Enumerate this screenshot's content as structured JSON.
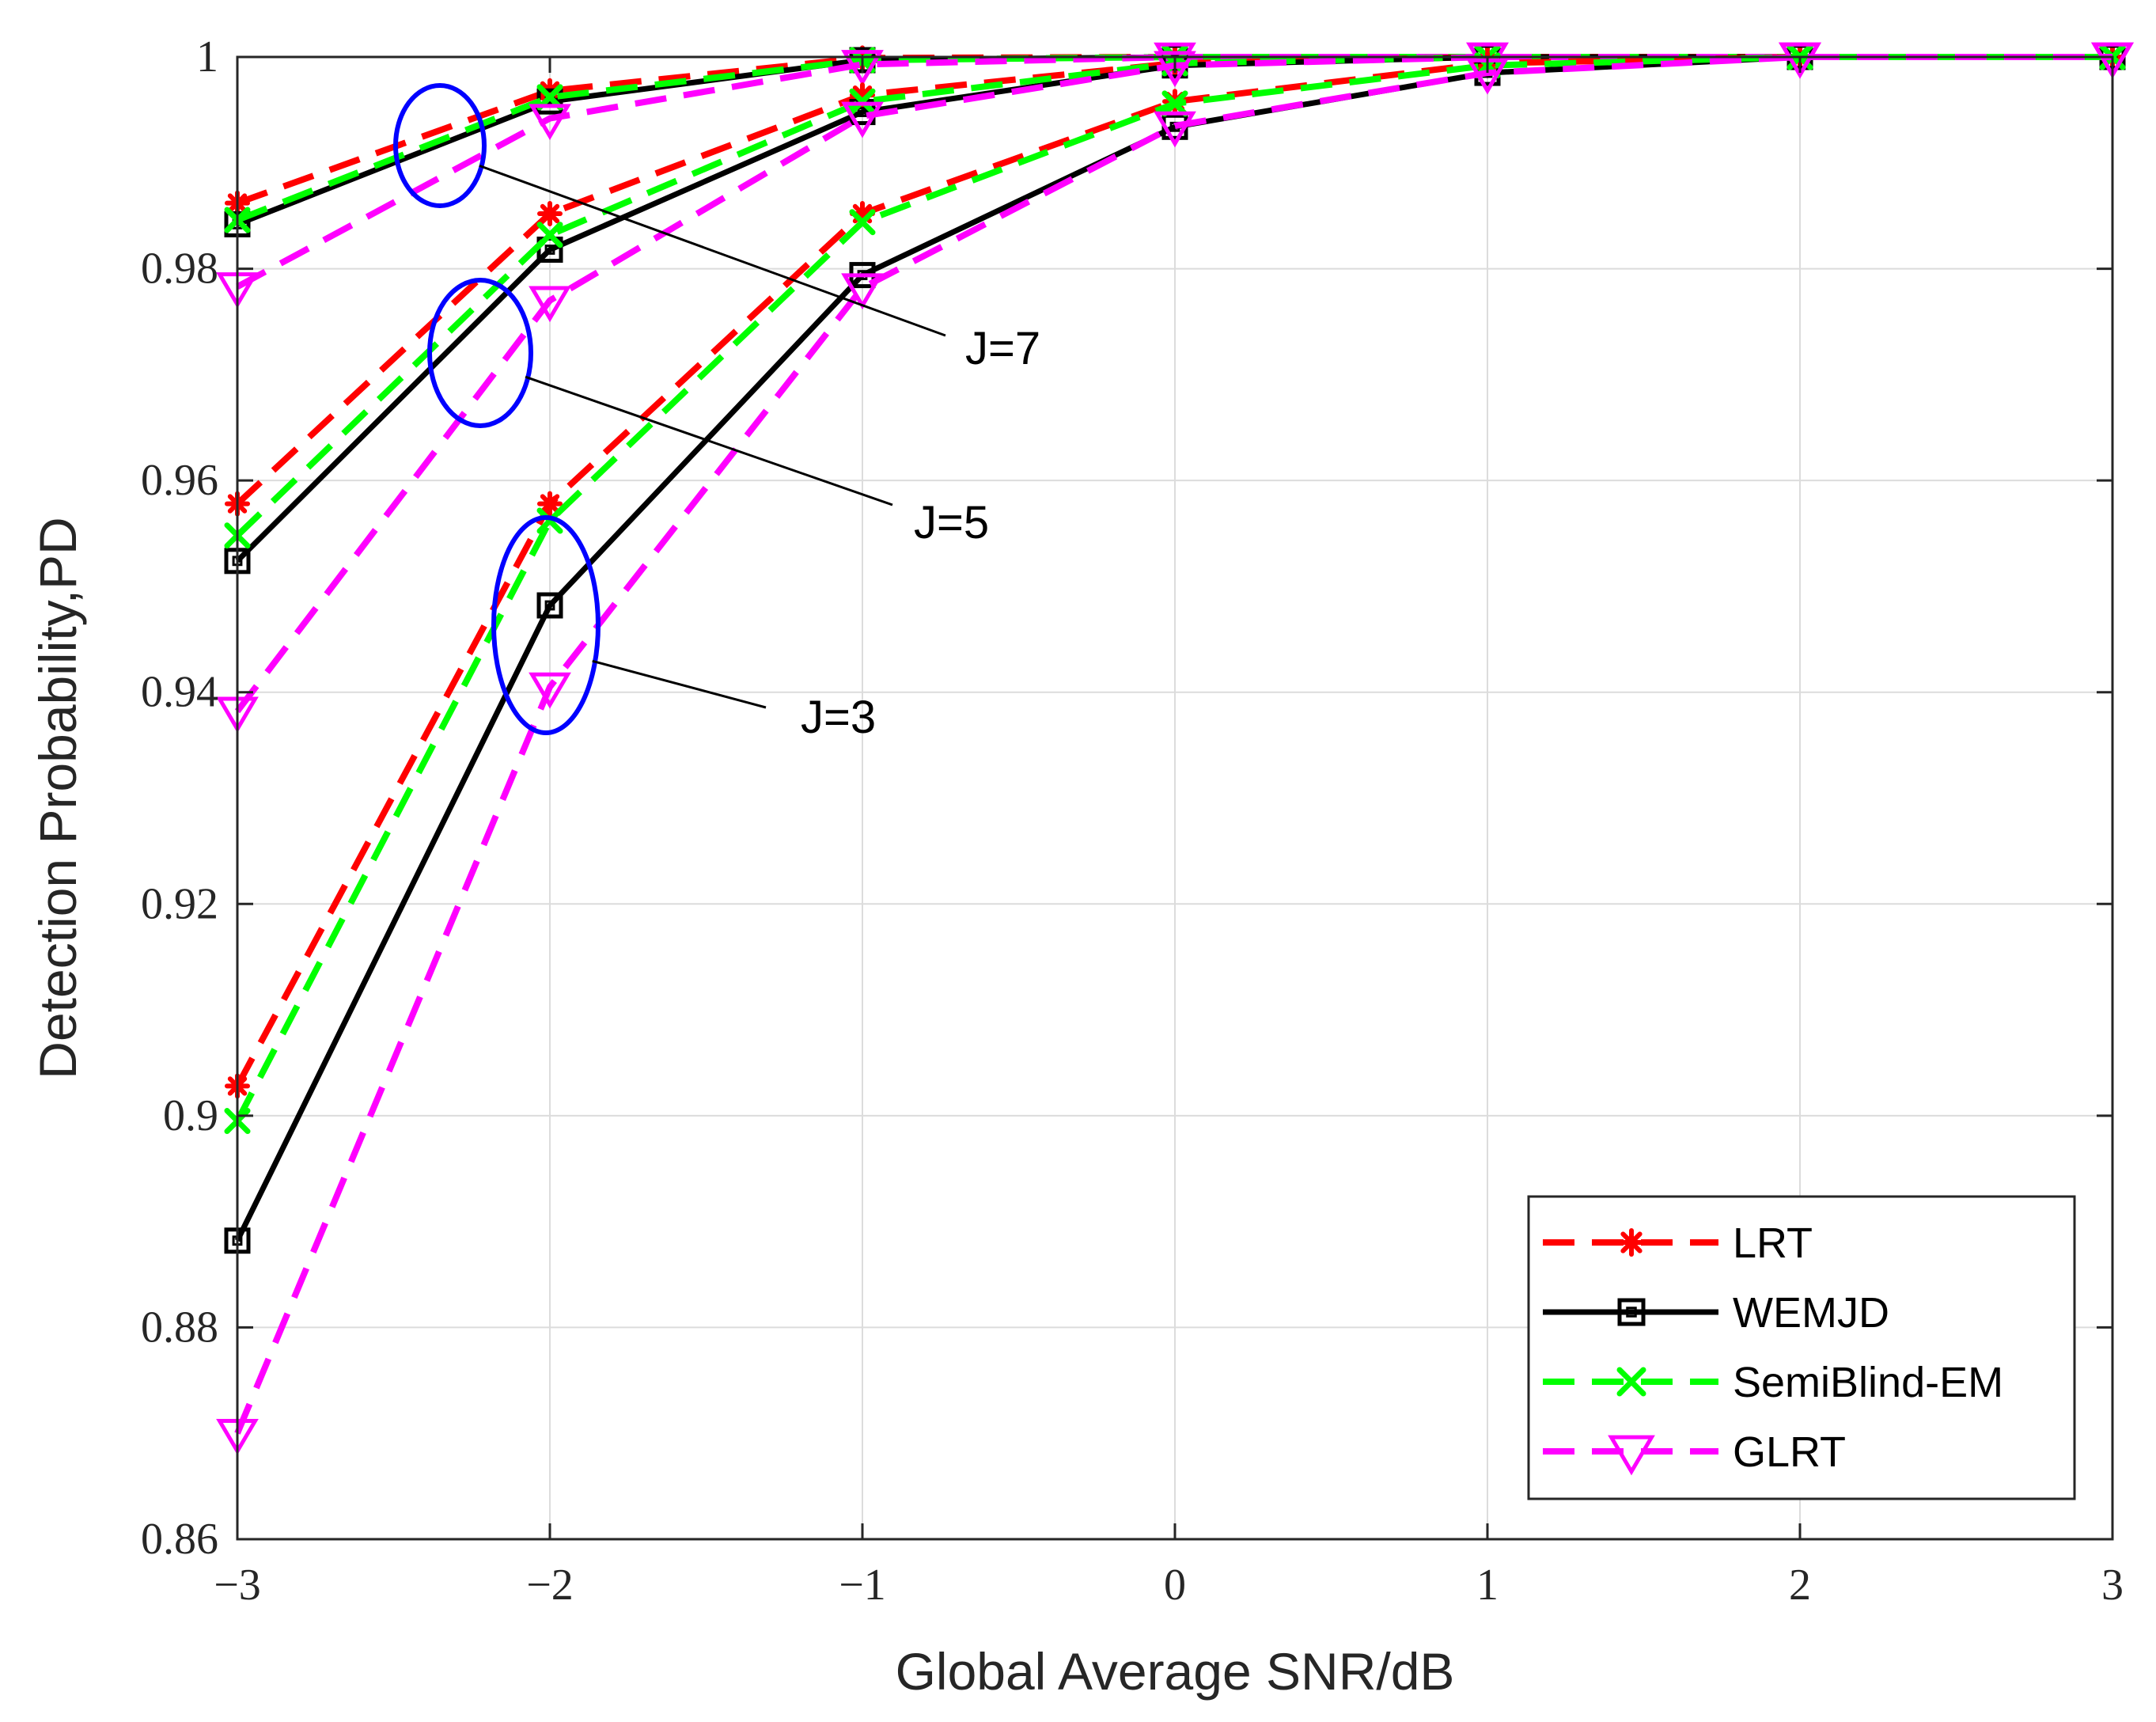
{
  "chart_data": {
    "type": "line",
    "title": "",
    "xlabel": "Global Average SNR/dB",
    "ylabel": "Detection Probability,PD",
    "x": [
      -3,
      -2,
      -1,
      0,
      1,
      2,
      3
    ],
    "xlim": [
      -3,
      3
    ],
    "ylim": [
      0.86,
      1
    ],
    "xticks": [
      -3,
      -2,
      -1,
      0,
      1,
      2,
      3
    ],
    "xtick_labels": [
      "−3",
      "−2",
      "−1",
      "0",
      "1",
      "2",
      "3"
    ],
    "yticks": [
      0.86,
      0.88,
      0.9,
      0.92,
      0.94,
      0.96,
      0.98,
      1
    ],
    "ytick_labels": [
      "0.86",
      "0.88",
      "0.9",
      "0.92",
      "0.94",
      "0.96",
      "0.98",
      "1"
    ],
    "grid": true,
    "legend_position": "bottom-right",
    "series": [
      {
        "name": "LRT",
        "group": "J=7",
        "color": "#ff0000",
        "dash": "dashed",
        "marker": "asterisk",
        "values": [
          0.9862,
          0.9968,
          0.9999,
          1.0,
          1.0,
          1.0,
          1.0
        ]
      },
      {
        "name": "WEMJD",
        "group": "J=7",
        "color": "#000000",
        "dash": "solid",
        "marker": "square",
        "values": [
          0.9842,
          0.9958,
          0.9997,
          1.0,
          1.0,
          1.0,
          1.0
        ]
      },
      {
        "name": "SemiBlind-EM",
        "group": "J=7",
        "color": "#00ff00",
        "dash": "dashed",
        "marker": "x",
        "values": [
          0.9846,
          0.9962,
          0.9997,
          1.0,
          1.0,
          1.0,
          1.0
        ]
      },
      {
        "name": "GLRT",
        "group": "J=7",
        "color": "#ff00ff",
        "dash": "dashed",
        "marker": "triangle-down",
        "values": [
          0.9783,
          0.9942,
          0.9993,
          1.0,
          1.0,
          1.0,
          1.0
        ]
      },
      {
        "name": "LRT",
        "group": "J=5",
        "color": "#ff0000",
        "dash": "dashed",
        "marker": "asterisk",
        "values": [
          0.9578,
          0.9852,
          0.9964,
          0.9994,
          1.0,
          1.0,
          1.0
        ]
      },
      {
        "name": "WEMJD",
        "group": "J=5",
        "color": "#000000",
        "dash": "solid",
        "marker": "square",
        "values": [
          0.9524,
          0.9818,
          0.9948,
          0.9992,
          1.0,
          1.0,
          1.0
        ]
      },
      {
        "name": "SemiBlind-EM",
        "group": "J=5",
        "color": "#00ff00",
        "dash": "dashed",
        "marker": "x",
        "values": [
          0.9548,
          0.9832,
          0.9958,
          0.9994,
          1.0,
          1.0,
          1.0
        ]
      },
      {
        "name": "GLRT",
        "group": "J=5",
        "color": "#ff00ff",
        "dash": "dashed",
        "marker": "triangle-down",
        "values": [
          0.9382,
          0.977,
          0.9944,
          0.9992,
          1.0,
          1.0,
          1.0
        ]
      },
      {
        "name": "LRT",
        "group": "J=3",
        "color": "#ff0000",
        "dash": "dashed",
        "marker": "asterisk",
        "values": [
          0.9028,
          0.9578,
          0.9852,
          0.9958,
          0.9994,
          1.0,
          1.0
        ]
      },
      {
        "name": "WEMJD",
        "group": "J=3",
        "color": "#000000",
        "dash": "solid",
        "marker": "square",
        "values": [
          0.8882,
          0.9482,
          0.9794,
          0.9934,
          0.9985,
          1.0,
          1.0
        ]
      },
      {
        "name": "SemiBlind-EM",
        "group": "J=3",
        "color": "#00ff00",
        "dash": "dashed",
        "marker": "x",
        "values": [
          0.8995,
          0.9562,
          0.9844,
          0.9956,
          0.9992,
          1.0,
          1.0
        ]
      },
      {
        "name": "GLRT",
        "group": "J=3",
        "color": "#ff00ff",
        "dash": "dashed",
        "marker": "triangle-down",
        "values": [
          0.87,
          0.9405,
          0.9782,
          0.9935,
          0.9985,
          1.0,
          1.0
        ]
      }
    ],
    "legend": [
      {
        "label": "LRT",
        "color": "#ff0000",
        "dash": "dashed",
        "marker": "asterisk"
      },
      {
        "label": "WEMJD",
        "color": "#000000",
        "dash": "solid",
        "marker": "square"
      },
      {
        "label": "SemiBlind-EM",
        "color": "#00ff00",
        "dash": "dashed",
        "marker": "x"
      },
      {
        "label": "GLRT",
        "color": "#ff00ff",
        "dash": "dashed",
        "marker": "triangle-down"
      }
    ],
    "annotations": [
      {
        "text": "J=7",
        "target_x": -2.35,
        "target_y": 0.9918
      },
      {
        "text": "J=5",
        "target_x": -2.25,
        "target_y": 0.9712
      },
      {
        "text": "J=3",
        "target_x": -2.0,
        "target_y": 0.9468
      }
    ]
  }
}
